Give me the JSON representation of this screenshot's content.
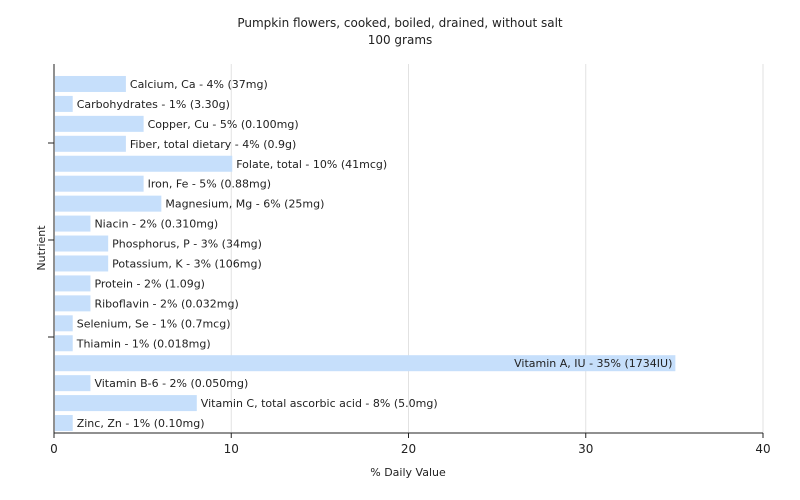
{
  "chart_data": {
    "type": "bar",
    "orientation": "horizontal",
    "title": "Pumpkin flowers, cooked, boiled, drained, without salt",
    "subtitle": "100 grams",
    "xlabel": "% Daily Value",
    "ylabel": "Nutrient",
    "xlim": [
      0,
      40
    ],
    "xticks": [
      0,
      10,
      20,
      30,
      40
    ],
    "grid": true,
    "bar_color": "#c6dffb",
    "categories": [
      "Calcium, Ca",
      "Carbohydrates",
      "Copper, Cu",
      "Fiber, total dietary",
      "Folate, total",
      "Iron, Fe",
      "Magnesium, Mg",
      "Niacin",
      "Phosphorus, P",
      "Potassium, K",
      "Protein",
      "Riboflavin",
      "Selenium, Se",
      "Thiamin",
      "Vitamin A, IU",
      "Vitamin B-6",
      "Vitamin C, total ascorbic acid",
      "Zinc, Zn"
    ],
    "values": [
      4,
      1,
      5,
      4,
      10,
      5,
      6,
      2,
      3,
      3,
      2,
      2,
      1,
      1,
      35,
      2,
      8,
      1
    ],
    "labels": [
      "Calcium, Ca - 4% (37mg)",
      "Carbohydrates - 1% (3.30g)",
      "Copper, Cu - 5% (0.100mg)",
      "Fiber, total dietary - 4% (0.9g)",
      "Folate, total - 10% (41mcg)",
      "Iron, Fe - 5% (0.88mg)",
      "Magnesium, Mg - 6% (25mg)",
      "Niacin - 2% (0.310mg)",
      "Phosphorus, P - 3% (34mg)",
      "Potassium, K - 3% (106mg)",
      "Protein - 2% (1.09g)",
      "Riboflavin - 2% (0.032mg)",
      "Selenium, Se - 1% (0.7mcg)",
      "Thiamin - 1% (0.018mg)",
      "Vitamin A, IU - 35% (1734IU)",
      "Vitamin B-6 - 2% (0.050mg)",
      "Vitamin C, total ascorbic acid - 8% (5.0mg)",
      "Zinc, Zn - 1% (0.10mg)"
    ]
  }
}
